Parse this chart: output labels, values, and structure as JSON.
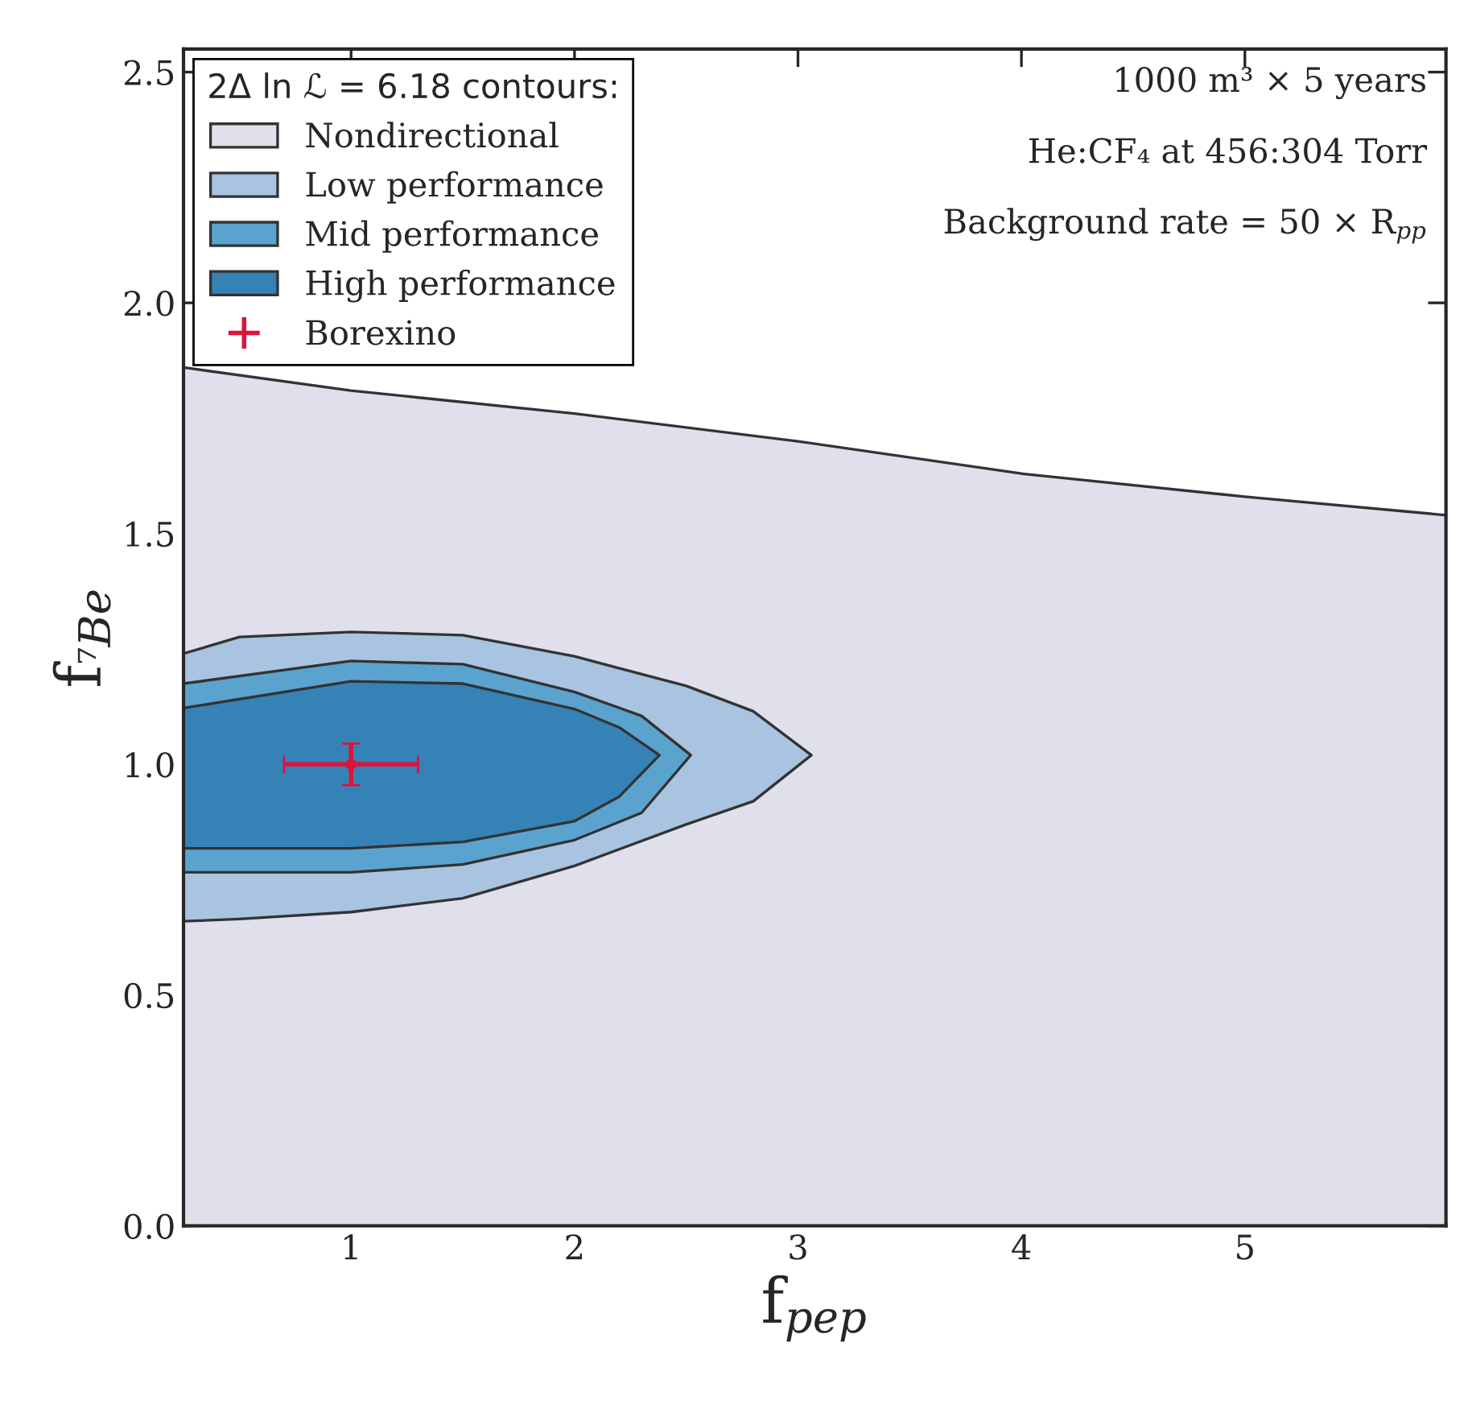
{
  "chart_data": {
    "type": "area",
    "xlabel": "f$_{pep}$",
    "ylabel": "f$_{⁷Be}$",
    "legend_title": "2Δ ln ℒ = 6.18 contours:",
    "xlim": [
      0.25,
      5.9
    ],
    "ylim": [
      0,
      2.55
    ],
    "xticks": [
      1,
      2,
      3,
      4,
      5
    ],
    "yticks": [
      {
        "value": 0,
        "label": "0.0"
      },
      0.5,
      {
        "value": 1,
        "label": "1.0"
      },
      1.5,
      {
        "value": 2,
        "label": "2.0"
      },
      2.5
    ],
    "legend": "top left",
    "grid": false,
    "annotations": [
      "1000 m³ × 5 years",
      "He:CF₄ at 456:304 Torr",
      "Background rate = 50 × R$_{pp}$"
    ],
    "series": [
      {
        "name": "Nondirectional",
        "color": "#e0e0ec",
        "x": [
          0.25,
          1,
          2,
          3,
          4,
          5,
          5.9,
          5.9,
          0.25
        ],
        "values": [
          1.86,
          1.81,
          1.76,
          1.7,
          1.63,
          1.58,
          1.54,
          0,
          0
        ]
      },
      {
        "name": "Low performance",
        "color": "#a8c4e0",
        "x": [
          0.25,
          0.5,
          1,
          1.5,
          2,
          2.5,
          2.8,
          3.06,
          2.8,
          2.5,
          2,
          1.5,
          1,
          0.5,
          0.25
        ],
        "values": [
          1.24,
          1.276,
          1.287,
          1.28,
          1.234,
          1.17,
          1.115,
          1.02,
          0.92,
          0.87,
          0.78,
          0.71,
          0.68,
          0.665,
          0.66
        ]
      },
      {
        "name": "Mid performance",
        "color": "#5ba3cf",
        "x": [
          0.25,
          1,
          1.5,
          2,
          2.3,
          2.52,
          2.3,
          2,
          1.5,
          1,
          0.25
        ],
        "values": [
          1.175,
          1.224,
          1.217,
          1.157,
          1.105,
          1.02,
          0.895,
          0.836,
          0.783,
          0.766,
          0.766
        ]
      },
      {
        "name": "High performance",
        "color": "#3582b6",
        "x": [
          0.25,
          1,
          1.5,
          2,
          2.2,
          2.38,
          2.2,
          2,
          1.5,
          1,
          0.25
        ],
        "values": [
          1.122,
          1.18,
          1.175,
          1.12,
          1.08,
          1.02,
          0.93,
          0.877,
          0.832,
          0.818,
          0.818
        ]
      },
      {
        "name": "Borexino",
        "type": "scatter",
        "color": "#dc143c",
        "x": [
          1
        ],
        "values": [
          1.0
        ],
        "errors": [
          0.045
        ],
        "xerrors": [
          0.3
        ]
      }
    ]
  }
}
